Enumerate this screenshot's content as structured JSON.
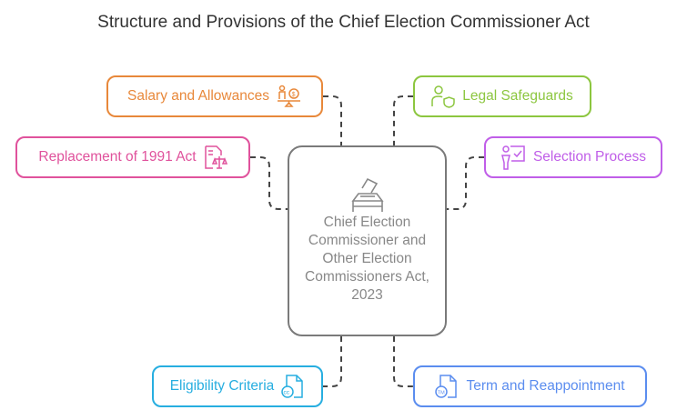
{
  "title": "Structure and Provisions of the Chief Election Commissioner Act",
  "center": {
    "label": "Chief Election Commissioner and Other Election Commissioners Act, 2023",
    "icon": "ballot-box-icon",
    "color": "#7a7a7a"
  },
  "nodes": [
    {
      "label": "Salary and Allowances",
      "icon": "salary-scale-icon",
      "color": "#e8883a"
    },
    {
      "label": "Legal Safeguards",
      "icon": "user-shield-icon",
      "color": "#8cc63f"
    },
    {
      "label": "Replacement of 1991 Act",
      "icon": "document-scale-icon",
      "color": "#e0529c"
    },
    {
      "label": "Selection Process",
      "icon": "presenter-check-icon",
      "color": "#c05ee8"
    },
    {
      "label": "Eligibility Criteria",
      "icon": "document-cc-icon",
      "color": "#27aee0"
    },
    {
      "label": "Term and Reappointment",
      "icon": "document-tm-icon",
      "color": "#5b8def"
    }
  ]
}
